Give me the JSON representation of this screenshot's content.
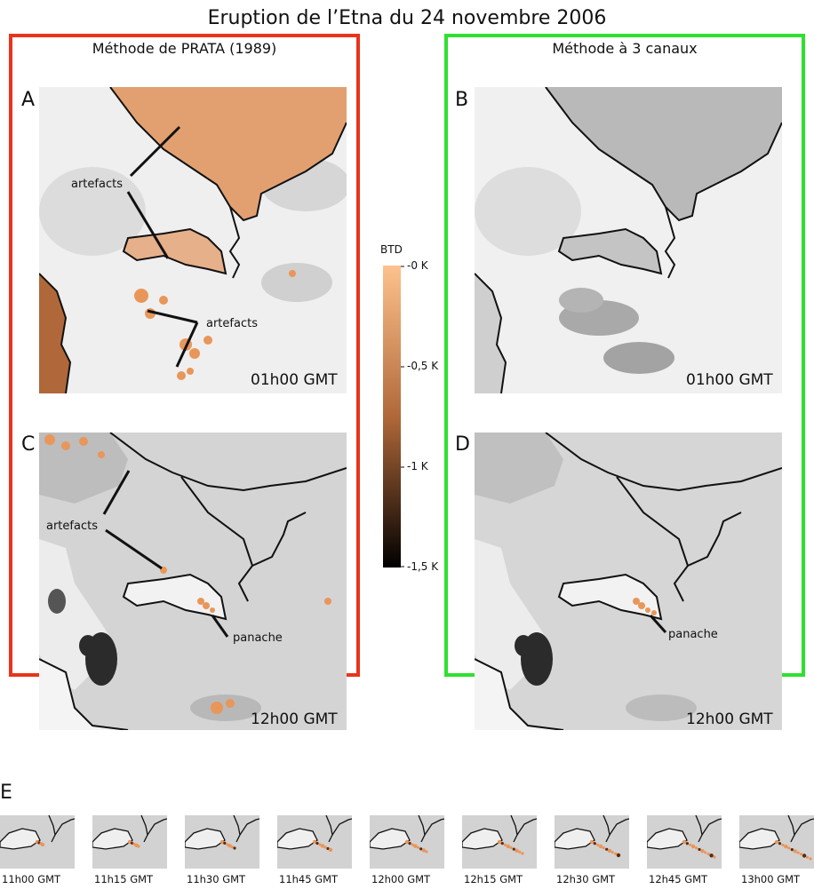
{
  "title": "Eruption de l’Etna du 24 novembre 2006",
  "methods": {
    "left": "Méthode de PRATA (1989)",
    "right": "Méthode à 3 canaux"
  },
  "panels": {
    "A": {
      "letter": "A",
      "time": "01h00 GMT"
    },
    "B": {
      "letter": "B",
      "time": "01h00 GMT"
    },
    "C": {
      "letter": "C",
      "time": "12h00 GMT"
    },
    "D": {
      "letter": "D",
      "time": "12h00 GMT"
    }
  },
  "annotations": {
    "artefacts": "artefacts",
    "panache": "panache"
  },
  "colorbar": {
    "title": "BTD",
    "ticks": [
      "-0 K",
      "-0,5 K",
      "-1 K",
      "-1,5 K"
    ],
    "colors": {
      "top": "#fdc28e",
      "mid": "#b0683a",
      "bottom": "#000000"
    }
  },
  "sequence": {
    "label": "E",
    "times": [
      "11h00 GMT",
      "11h15 GMT",
      "11h30 GMT",
      "11h45 GMT",
      "12h00 GMT",
      "12h15 GMT",
      "12h30 GMT",
      "12h45 GMT",
      "13h00 GMT"
    ]
  },
  "colors": {
    "prata_frame": "#e8341c",
    "three_channel_frame": "#2fe02f",
    "artefact": "#e9965a"
  }
}
